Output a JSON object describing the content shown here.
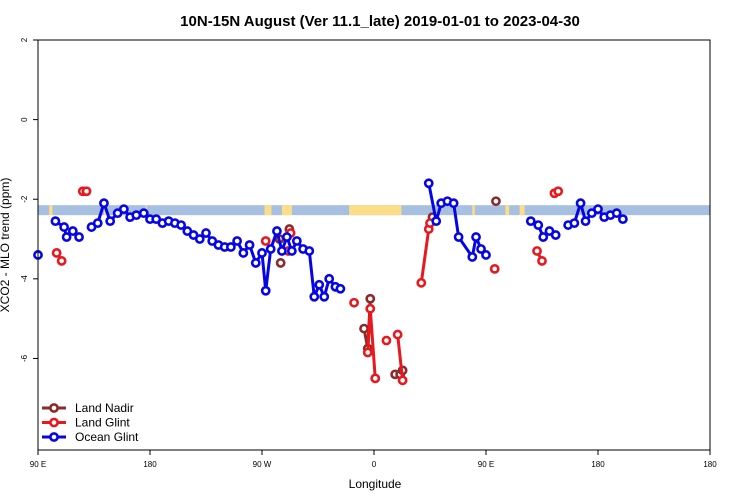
{
  "chart_data": {
    "type": "line",
    "title": "10N-15N August (Ver 11.1_late)   2019-01-01 to 2023-04-30",
    "xlabel": "Longitude",
    "ylabel": "XCO2 - MLO trend (ppm)",
    "xlim": [
      -90,
      180
    ],
    "ylim": [
      -8.3,
      2
    ],
    "x_ticks": [
      {
        "value": -90,
        "label": "90 E"
      },
      {
        "value": -45,
        "label": "180"
      },
      {
        "value": 0,
        "label": "90 W"
      },
      {
        "value": 45,
        "label": "0"
      },
      {
        "value": 90,
        "label": "90 E"
      },
      {
        "value": 135,
        "label": "180"
      }
    ],
    "y_ticks": [
      {
        "value": 2,
        "label": "2"
      },
      {
        "value": 0,
        "label": "0"
      },
      {
        "value": -2,
        "label": "-2"
      },
      {
        "value": -4,
        "label": "-4"
      },
      {
        "value": -6,
        "label": "-6"
      }
    ],
    "grid": false,
    "legend_position": "bottom-left",
    "land_band": {
      "y_low": -2.4,
      "y_high": -2.15,
      "color_ocean": "#a7bfe1",
      "color_land": "#fcde88"
    },
    "land_spans": [
      [
        -85.5,
        -84.2
      ],
      [
        -63.5,
        -62.5
      ],
      [
        -46.8,
        -46.3
      ],
      [
        1,
        3.8
      ],
      [
        8,
        12
      ],
      [
        35,
        56
      ],
      [
        84.5,
        85.5
      ],
      [
        97.8,
        99.3
      ],
      [
        103.5,
        105.5
      ],
      [
        135.5,
        136.5
      ]
    ],
    "series": [
      {
        "name": "Land Nadir",
        "color": "#8b2a2a",
        "segments": [
          [
            [
              7,
              -3
            ]
          ],
          [
            [
              7.5,
              -3.6
            ]
          ],
          [
            [
              11,
              -2.75
            ]
          ],
          [
            [
              41,
              -5.25
            ],
            [
              42.5,
              -5.75
            ],
            [
              43.5,
              -4.5
            ]
          ],
          [
            [
              53.5,
              -6.4
            ],
            [
              55.5,
              -6.4
            ],
            [
              56.5,
              -6.3
            ]
          ],
          [
            [
              68.5,
              -2.45
            ]
          ],
          [
            [
              94,
              -2.05
            ]
          ]
        ]
      },
      {
        "name": "Land Glint",
        "color": "#e8191e",
        "segments": [
          [
            [
              -82.5,
              -3.35
            ],
            [
              -80.5,
              -3.55
            ]
          ],
          [
            [
              -72,
              -1.8
            ],
            [
              -70.5,
              -1.8
            ]
          ],
          [
            [
              1.5,
              -3.05
            ]
          ],
          [
            [
              10.5,
              -3.3
            ]
          ],
          [
            [
              11.5,
              -2.85
            ]
          ],
          [
            [
              37,
              -4.6
            ]
          ],
          [
            [
              42.5,
              -5.85
            ],
            [
              43.5,
              -4.75
            ],
            [
              45.5,
              -6.5
            ]
          ],
          [
            [
              50,
              -5.55
            ]
          ],
          [
            [
              54.5,
              -5.4
            ],
            [
              56.5,
              -6.55
            ]
          ],
          [
            [
              64,
              -4.1
            ],
            [
              67,
              -2.75
            ],
            [
              67.5,
              -2.6
            ]
          ],
          [
            [
              93.5,
              -3.75
            ]
          ],
          [
            [
              110.5,
              -3.3
            ],
            [
              112.5,
              -3.55
            ]
          ],
          [
            [
              117.5,
              -1.85
            ],
            [
              119,
              -1.8
            ]
          ]
        ]
      },
      {
        "name": "Ocean Glint",
        "color": "#0505e6",
        "segments": [
          [
            [
              -90,
              -3.4
            ]
          ],
          [
            [
              -83,
              -2.55
            ],
            [
              -79.5,
              -2.7
            ],
            [
              -78.5,
              -2.95
            ],
            [
              -76,
              -2.8
            ],
            [
              -73.5,
              -2.95
            ]
          ],
          [
            [
              -68.5,
              -2.7
            ],
            [
              -66,
              -2.6
            ],
            [
              -63.5,
              -2.1
            ],
            [
              -61,
              -2.55
            ],
            [
              -58,
              -2.35
            ],
            [
              -55.5,
              -2.25
            ],
            [
              -53,
              -2.45
            ],
            [
              -50.5,
              -2.4
            ],
            [
              -47.5,
              -2.35
            ],
            [
              -45,
              -2.5
            ],
            [
              -42.5,
              -2.5
            ],
            [
              -40,
              -2.6
            ],
            [
              -37.5,
              -2.55
            ],
            [
              -35,
              -2.6
            ],
            [
              -32.5,
              -2.65
            ],
            [
              -30,
              -2.8
            ],
            [
              -27.5,
              -2.9
            ],
            [
              -25,
              -3
            ],
            [
              -22.5,
              -2.85
            ],
            [
              -20,
              -3.05
            ],
            [
              -17.5,
              -3.15
            ],
            [
              -15,
              -3.2
            ],
            [
              -12.5,
              -3.2
            ],
            [
              -10,
              -3.05
            ],
            [
              -7.5,
              -3.35
            ],
            [
              -5,
              -3.15
            ],
            [
              -2.5,
              -3.6
            ],
            [
              0,
              -3.35
            ],
            [
              1.5,
              -4.3
            ],
            [
              3.5,
              -3.25
            ],
            [
              6,
              -2.8
            ],
            [
              8,
              -3.3
            ],
            [
              10,
              -2.95
            ],
            [
              12,
              -3.3
            ],
            [
              14,
              -3.05
            ],
            [
              16.5,
              -3.25
            ],
            [
              19,
              -3.3
            ],
            [
              21,
              -4.45
            ],
            [
              23,
              -4.15
            ],
            [
              25,
              -4.45
            ],
            [
              27,
              -4
            ],
            [
              29.5,
              -4.2
            ],
            [
              31.5,
              -4.25
            ]
          ],
          [
            [
              67,
              -1.6
            ],
            [
              70,
              -2.55
            ],
            [
              72,
              -2.1
            ],
            [
              74.5,
              -2.05
            ],
            [
              77,
              -2.1
            ],
            [
              79,
              -2.95
            ],
            [
              84.5,
              -3.45
            ],
            [
              86,
              -2.95
            ],
            [
              88,
              -3.25
            ],
            [
              90,
              -3.4
            ]
          ],
          [
            [
              108,
              -2.55
            ],
            [
              111,
              -2.65
            ],
            [
              113,
              -2.95
            ],
            [
              115.5,
              -2.8
            ],
            [
              118,
              -2.9
            ]
          ],
          [
            [
              123,
              -2.65
            ],
            [
              125.5,
              -2.6
            ],
            [
              128,
              -2.1
            ],
            [
              130,
              -2.55
            ],
            [
              132.5,
              -2.35
            ],
            [
              135,
              -2.25
            ],
            [
              137.5,
              -2.45
            ],
            [
              140,
              -2.4
            ],
            [
              142.5,
              -2.35
            ],
            [
              145,
              -2.5
            ]
          ]
        ]
      }
    ]
  }
}
